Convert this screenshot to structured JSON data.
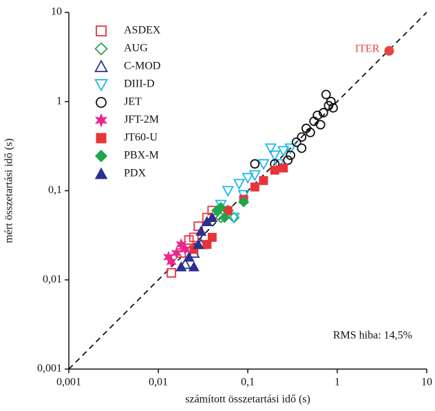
{
  "chart_data": {
    "type": "scatter",
    "xlabel": "számított összetartási idő (s)",
    "ylabel": "mért összetartási idő (s)",
    "xscale": "log",
    "yscale": "log",
    "xlim": [
      0.001,
      10
    ],
    "ylim": [
      0.001,
      10
    ],
    "xticks": [
      {
        "value": 0.001,
        "label": "0,001"
      },
      {
        "value": 0.01,
        "label": "0,01"
      },
      {
        "value": 0.1,
        "label": "0,1"
      },
      1,
      10
    ],
    "yticks": [
      {
        "value": 0.001,
        "label": "0,001"
      },
      {
        "value": 0.01,
        "label": "0,01"
      },
      {
        "value": 0.1,
        "label": "0,1"
      },
      1,
      10
    ],
    "reference_line": "y=x",
    "legend": "upper left",
    "series": [
      {
        "name": "ASDEX",
        "color": "#e8343a",
        "marker": "square",
        "filled": false,
        "x": [
          0.014,
          0.018,
          0.022,
          0.028,
          0.035,
          0.04,
          0.025
        ],
        "values": [
          0.012,
          0.02,
          0.028,
          0.04,
          0.05,
          0.06,
          0.03
        ]
      },
      {
        "name": "AUG",
        "color": "#1fa64a",
        "marker": "diamond",
        "filled": false,
        "x": [
          0.07,
          0.06,
          0.05
        ],
        "values": [
          0.05,
          0.06,
          0.05
        ]
      },
      {
        "name": "C-MOD",
        "color": "#2b2f8f",
        "marker": "triangle",
        "filled": false,
        "x": [
          0.02,
          0.025,
          0.03
        ],
        "values": [
          0.015,
          0.02,
          0.025
        ]
      },
      {
        "name": "DIII-D",
        "color": "#1cb8ea",
        "marker": "triangle-down",
        "filled": false,
        "x": [
          0.05,
          0.06,
          0.08,
          0.1,
          0.12,
          0.15,
          0.2,
          0.25,
          0.3,
          0.18,
          0.07,
          0.09,
          0.22
        ],
        "values": [
          0.07,
          0.1,
          0.12,
          0.14,
          0.15,
          0.2,
          0.25,
          0.28,
          0.3,
          0.3,
          0.05,
          0.09,
          0.2
        ]
      },
      {
        "name": "JET",
        "color": "#111111",
        "marker": "circle",
        "filled": false,
        "x": [
          0.12,
          0.2,
          0.3,
          0.35,
          0.4,
          0.45,
          0.5,
          0.55,
          0.6,
          0.7,
          0.8,
          0.85,
          0.75,
          0.9,
          0.65,
          0.4,
          0.28
        ],
        "values": [
          0.2,
          0.2,
          0.25,
          0.35,
          0.4,
          0.5,
          0.45,
          0.6,
          0.7,
          0.75,
          0.9,
          1.0,
          1.2,
          0.85,
          0.55,
          0.3,
          0.22
        ]
      },
      {
        "name": "JFT-2M",
        "color": "#e8288c",
        "marker": "star",
        "filled": true,
        "x": [
          0.013,
          0.016,
          0.018,
          0.014,
          0.02
        ],
        "values": [
          0.018,
          0.02,
          0.025,
          0.016,
          0.022
        ]
      },
      {
        "name": "JT60-U",
        "color": "#e8343a",
        "marker": "square",
        "filled": true,
        "x": [
          0.025,
          0.035,
          0.04,
          0.09,
          0.12,
          0.15,
          0.2,
          0.25,
          0.06
        ],
        "values": [
          0.022,
          0.025,
          0.03,
          0.08,
          0.11,
          0.13,
          0.17,
          0.18,
          0.06
        ]
      },
      {
        "name": "PBX-M",
        "color": "#1fa64a",
        "marker": "diamond",
        "filled": true,
        "x": [
          0.045,
          0.05,
          0.09,
          0.055
        ],
        "values": [
          0.06,
          0.065,
          0.075,
          0.05
        ]
      },
      {
        "name": "PDX",
        "color": "#2b2f8f",
        "marker": "triangle",
        "filled": true,
        "x": [
          0.018,
          0.022,
          0.028,
          0.03,
          0.035,
          0.04,
          0.025
        ],
        "values": [
          0.014,
          0.018,
          0.025,
          0.035,
          0.045,
          0.05,
          0.014
        ]
      }
    ],
    "annotations": [
      {
        "text": "ITER",
        "x": 3.8,
        "y": 3.7,
        "color": "#e8453c"
      },
      {
        "text": "RMS hiba: 14,5%"
      }
    ]
  }
}
